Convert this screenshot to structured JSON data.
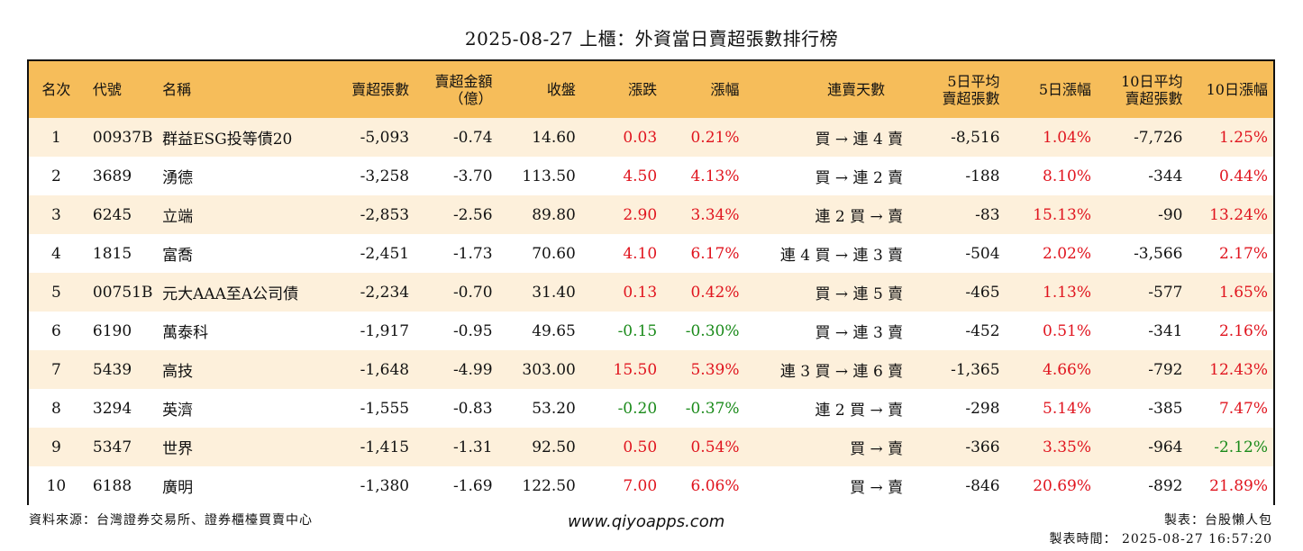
{
  "title": "2025-08-27 上櫃：外資當日賣超張數排行榜",
  "headers": {
    "rank": "名次",
    "code": "代號",
    "name": "名稱",
    "sell_shares": "賣超張數",
    "sell_amount_1": "賣超金額",
    "sell_amount_2": "（億）",
    "close": "收盤",
    "change": "漲跌",
    "change_pct": "漲幅",
    "streak": "連賣天數",
    "avg5_1": "5日平均",
    "avg5_2": "賣超張數",
    "pct5": "5日漲幅",
    "avg10_1": "10日平均",
    "avg10_2": "賣超張數",
    "pct10": "10日漲幅"
  },
  "rows": [
    {
      "rank": "1",
      "code": "00937B",
      "name": "群益ESG投等債20",
      "sell": "-5,093",
      "amount": "-0.74",
      "close": "14.60",
      "chg": "0.03",
      "chg_pct": "0.21%",
      "streak": "買 → 連 4 賣",
      "avg5": "-8,516",
      "pct5": "1.04%",
      "avg10": "-7,726",
      "pct10": "1.25%"
    },
    {
      "rank": "2",
      "code": "3689",
      "name": "湧德",
      "sell": "-3,258",
      "amount": "-3.70",
      "close": "113.50",
      "chg": "4.50",
      "chg_pct": "4.13%",
      "streak": "買 → 連 2 賣",
      "avg5": "-188",
      "pct5": "8.10%",
      "avg10": "-344",
      "pct10": "0.44%"
    },
    {
      "rank": "3",
      "code": "6245",
      "name": "立端",
      "sell": "-2,853",
      "amount": "-2.56",
      "close": "89.80",
      "chg": "2.90",
      "chg_pct": "3.34%",
      "streak": "連 2 買 → 賣",
      "avg5": "-83",
      "pct5": "15.13%",
      "avg10": "-90",
      "pct10": "13.24%"
    },
    {
      "rank": "4",
      "code": "1815",
      "name": "富喬",
      "sell": "-2,451",
      "amount": "-1.73",
      "close": "70.60",
      "chg": "4.10",
      "chg_pct": "6.17%",
      "streak": "連 4 買 → 連 3 賣",
      "avg5": "-504",
      "pct5": "2.02%",
      "avg10": "-3,566",
      "pct10": "2.17%"
    },
    {
      "rank": "5",
      "code": "00751B",
      "name": "元大AAA至A公司債",
      "sell": "-2,234",
      "amount": "-0.70",
      "close": "31.40",
      "chg": "0.13",
      "chg_pct": "0.42%",
      "streak": "買 → 連 5 賣",
      "avg5": "-465",
      "pct5": "1.13%",
      "avg10": "-577",
      "pct10": "1.65%"
    },
    {
      "rank": "6",
      "code": "6190",
      "name": "萬泰科",
      "sell": "-1,917",
      "amount": "-0.95",
      "close": "49.65",
      "chg": "-0.15",
      "chg_pct": "-0.30%",
      "streak": "買 → 連 3 賣",
      "avg5": "-452",
      "pct5": "0.51%",
      "avg10": "-341",
      "pct10": "2.16%"
    },
    {
      "rank": "7",
      "code": "5439",
      "name": "高技",
      "sell": "-1,648",
      "amount": "-4.99",
      "close": "303.00",
      "chg": "15.50",
      "chg_pct": "5.39%",
      "streak": "連 3 買 → 連 6 賣",
      "avg5": "-1,365",
      "pct5": "4.66%",
      "avg10": "-792",
      "pct10": "12.43%"
    },
    {
      "rank": "8",
      "code": "3294",
      "name": "英濟",
      "sell": "-1,555",
      "amount": "-0.83",
      "close": "53.20",
      "chg": "-0.20",
      "chg_pct": "-0.37%",
      "streak": "連 2 買 → 賣",
      "avg5": "-298",
      "pct5": "5.14%",
      "avg10": "-385",
      "pct10": "7.47%"
    },
    {
      "rank": "9",
      "code": "5347",
      "name": "世界",
      "sell": "-1,415",
      "amount": "-1.31",
      "close": "92.50",
      "chg": "0.50",
      "chg_pct": "0.54%",
      "streak": "買 → 賣",
      "avg5": "-366",
      "pct5": "3.35%",
      "avg10": "-964",
      "pct10": "-2.12%"
    },
    {
      "rank": "10",
      "code": "6188",
      "name": "廣明",
      "sell": "-1,380",
      "amount": "-1.69",
      "close": "122.50",
      "chg": "7.00",
      "chg_pct": "6.06%",
      "streak": "買 → 賣",
      "avg5": "-846",
      "pct5": "20.69%",
      "avg10": "-892",
      "pct10": "21.89%"
    }
  ],
  "footer": {
    "source": "資料來源：台灣證券交易所、證券櫃檯買賣中心",
    "website": "www.qiyoapps.com",
    "maker": "製表：台股懶人包",
    "made_time": "製表時間： 2025-08-27 16:57:20"
  },
  "colors": {
    "header_bg": "#f6bd5a",
    "row_alt": "#fdf0db",
    "positive": "#e0141e",
    "negative": "#1a8a1a"
  }
}
